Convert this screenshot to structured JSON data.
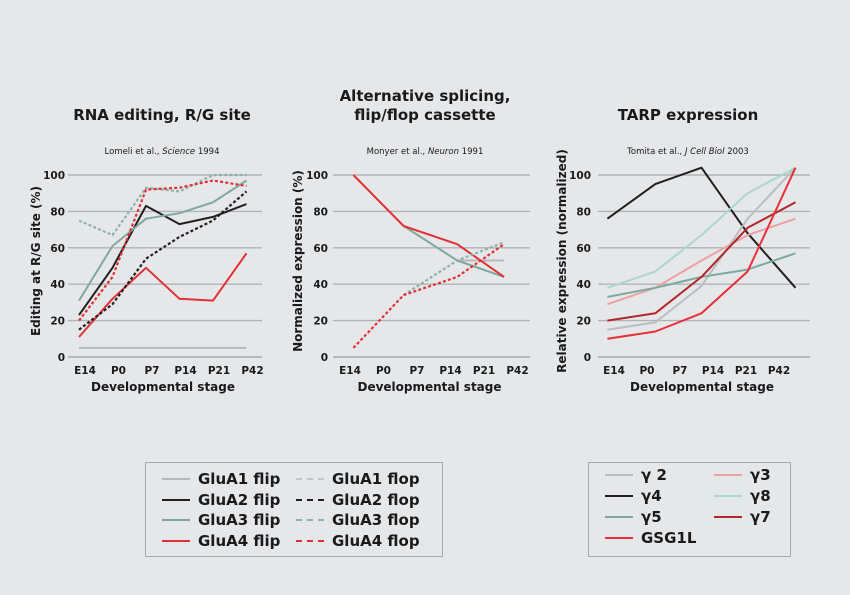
{
  "chart_data": [
    {
      "type": "line",
      "title": "RNA editing, R/G site",
      "citation": {
        "pre": "Lomeli et al., ",
        "journal": "Science",
        "post": " 1994"
      },
      "xlabel": "Developmental stage",
      "ylabel": "Editing at R/G site (%)",
      "categories": [
        "E14",
        "P0",
        "P7",
        "P14",
        "P21",
        "P42"
      ],
      "yticks": [
        0,
        20,
        40,
        60,
        80,
        100
      ],
      "ylim": [
        0,
        100
      ],
      "grid": true,
      "series": [
        {
          "name": "GluA1 flip",
          "color": "#b7b8ba",
          "dash": false,
          "x": [
            0,
            5
          ],
          "values": [
            5,
            5
          ]
        },
        {
          "name": "GluA2 flip",
          "color": "#231f20",
          "dash": false,
          "x": [
            0,
            1,
            2,
            3,
            4,
            5
          ],
          "values": [
            23,
            49,
            83,
            73,
            77,
            84
          ]
        },
        {
          "name": "GluA3 flip",
          "color": "#7fa89f",
          "dash": false,
          "x": [
            0,
            1,
            2,
            3,
            4,
            5
          ],
          "values": [
            31,
            61,
            76,
            79,
            85,
            97
          ]
        },
        {
          "name": "GluA4 flip",
          "color": "#e03235",
          "dash": false,
          "x": [
            0,
            1,
            2,
            3,
            4,
            5
          ],
          "values": [
            11,
            32,
            49,
            32,
            31,
            57
          ]
        },
        {
          "name": "GluA2 flop",
          "color": "#231f20",
          "dash": true,
          "x": [
            0,
            1,
            2,
            3,
            4,
            5
          ],
          "values": [
            15,
            29,
            54,
            66,
            75,
            91
          ]
        },
        {
          "name": "GluA3 flop",
          "color": "#8db3a9",
          "dash": true,
          "x": [
            0,
            1,
            2,
            3,
            4,
            5
          ],
          "values": [
            75,
            67,
            93,
            91,
            100,
            100
          ]
        },
        {
          "name": "GluA4 flop",
          "color": "#e03235",
          "dash": true,
          "x": [
            0,
            1,
            2,
            3,
            4,
            5
          ],
          "values": [
            20,
            44,
            92,
            93,
            97,
            94
          ]
        }
      ]
    },
    {
      "type": "line",
      "title": "Alternative splicing,",
      "title2": "flip/flop cassette",
      "citation": {
        "pre": "Monyer et al., ",
        "journal": "Neuron",
        "post": " 1991"
      },
      "xlabel": "Developmental stage",
      "ylabel": "Normalized expression (%)",
      "categories": [
        "E14",
        "P0",
        "P7",
        "P14",
        "P21",
        "P42"
      ],
      "yticks": [
        0,
        20,
        40,
        60,
        80,
        100
      ],
      "ylim": [
        0,
        100
      ],
      "grid": true,
      "series": [
        {
          "name": "GluA1 flip",
          "color": "#b7b8ba",
          "dash": false,
          "x": [
            3.2,
            4.6
          ],
          "values": [
            53,
            53
          ]
        },
        {
          "name": "GluA3 flip",
          "color": "#7fa89f",
          "dash": false,
          "x": [
            1.6,
            3.2,
            4.6
          ],
          "values": [
            72,
            53,
            44
          ]
        },
        {
          "name": "GluA4 flip",
          "color": "#e03235",
          "dash": false,
          "x": [
            0.1,
            1.6,
            3.2,
            4.6
          ],
          "values": [
            100,
            72,
            62,
            44
          ]
        },
        {
          "name": "GluA3 flop",
          "color": "#8db3a9",
          "dash": true,
          "x": [
            1.6,
            3.2,
            4.6
          ],
          "values": [
            34,
            53,
            63
          ]
        },
        {
          "name": "GluA4 flop",
          "color": "#e03235",
          "dash": true,
          "x": [
            0.1,
            1.6,
            3.2,
            4.6
          ],
          "values": [
            5,
            34,
            44,
            62
          ]
        }
      ]
    },
    {
      "type": "line",
      "title": "TARP expression",
      "citation": {
        "pre": "Tomita et al., ",
        "journal": "J Cell Biol",
        "post": " 2003"
      },
      "xlabel": "Developmental stage",
      "ylabel": "Relative expression (normalized)",
      "categories": [
        "E14",
        "P0",
        "P7",
        "P14",
        "P21",
        "P42"
      ],
      "yticks": [
        0,
        20,
        40,
        60,
        80,
        100
      ],
      "ylim": [
        0,
        100
      ],
      "grid": true,
      "series": [
        {
          "name": "γ4",
          "color": "#231f20",
          "dash": false,
          "x": [
            -0.2,
            1.25,
            2.65,
            4.05,
            5.5
          ],
          "values": [
            76,
            95,
            104,
            68,
            38
          ]
        },
        {
          "name": "γ8",
          "color": "#a9d8cc",
          "dash": false,
          "x": [
            -0.2,
            1.25,
            2.65,
            4.05,
            5.5
          ],
          "values": [
            38,
            47,
            67,
            90,
            104
          ]
        },
        {
          "name": "γ 2",
          "color": "#bcbdbf",
          "dash": false,
          "x": [
            -0.2,
            1.25,
            2.65,
            4.05,
            5.5
          ],
          "values": [
            15,
            19,
            39,
            76,
            104
          ]
        },
        {
          "name": "γ3",
          "color": "#eca1a2",
          "dash": false,
          "x": [
            -0.2,
            1.25,
            2.65,
            4.05,
            5.5
          ],
          "values": [
            29,
            38,
            53,
            67,
            76
          ]
        },
        {
          "name": "γ5",
          "color": "#7fa89f",
          "dash": false,
          "x": [
            -0.2,
            1.25,
            2.65,
            4.05,
            5.5
          ],
          "values": [
            33,
            38,
            44,
            48,
            57
          ]
        },
        {
          "name": "γ7",
          "color": "#b3262a",
          "dash": false,
          "x": [
            -0.2,
            1.25,
            2.65,
            4.05,
            5.5
          ],
          "values": [
            20,
            24,
            44,
            71,
            85
          ]
        },
        {
          "name": "GSG1L",
          "color": "#e8303a",
          "dash": false,
          "x": [
            -0.2,
            1.25,
            2.65,
            4.05,
            5.5
          ],
          "values": [
            10,
            14,
            24,
            47,
            104
          ]
        }
      ]
    }
  ],
  "legends": [
    {
      "items": [
        {
          "label": "GluA1 flip",
          "color": "#b7b8ba",
          "dash": false
        },
        {
          "label": "GluA2 flip",
          "color": "#231f20",
          "dash": false
        },
        {
          "label": "GluA3 flip",
          "color": "#7fa89f",
          "dash": false
        },
        {
          "label": "GluA4 flip",
          "color": "#e03235",
          "dash": false
        },
        {
          "label": "GluA1 flop",
          "color": "#c4c5c7",
          "dash": true
        },
        {
          "label": "GluA2 flop",
          "color": "#231f20",
          "dash": true
        },
        {
          "label": "GluA3 flop",
          "color": "#8db3a9",
          "dash": true
        },
        {
          "label": "GluA4 flop",
          "color": "#e03235",
          "dash": true
        }
      ]
    },
    {
      "items": [
        {
          "label": "γ 2",
          "color": "#bcbdbf",
          "dash": false
        },
        {
          "label": "γ4",
          "color": "#231f20",
          "dash": false
        },
        {
          "label": "γ5",
          "color": "#7fa89f",
          "dash": false
        },
        {
          "label": "GSG1L",
          "color": "#e8303a",
          "dash": false
        },
        {
          "label": "γ3",
          "color": "#eca1a2",
          "dash": false
        },
        {
          "label": "γ8",
          "color": "#a9d8cc",
          "dash": false
        },
        {
          "label": "γ7",
          "color": "#b3262a",
          "dash": false
        }
      ]
    }
  ]
}
